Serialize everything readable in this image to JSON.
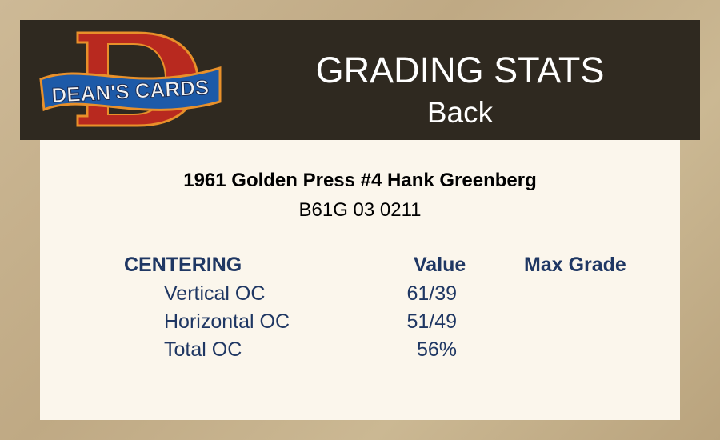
{
  "header": {
    "logo_text": "DEAN'S CARDS",
    "title": "GRADING STATS",
    "subtitle": "Back"
  },
  "card": {
    "name": "1961 Golden Press #4 Hank Greenberg",
    "code": "B61G 03 0211"
  },
  "table": {
    "section": "CENTERING",
    "value_header": "Value",
    "max_grade_header": "Max Grade",
    "rows": [
      {
        "label": "Vertical OC",
        "value": "61/39"
      },
      {
        "label": "Horizontal OC",
        "value": "51/49"
      },
      {
        "label": "Total OC",
        "value": "56%"
      }
    ]
  },
  "colors": {
    "header_bg": "#2f2920",
    "panel_bg": "#fbf6ec",
    "table_text": "#1f3763"
  }
}
